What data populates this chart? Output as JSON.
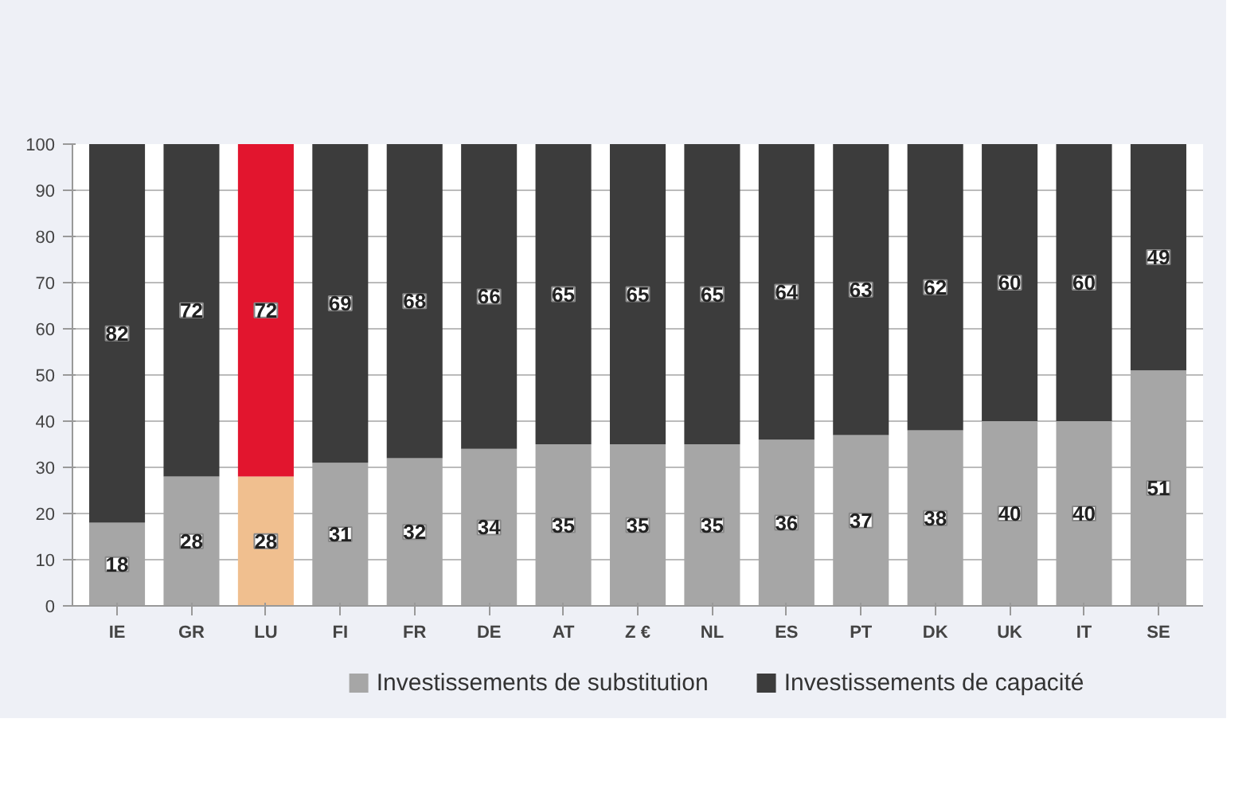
{
  "chart_data": {
    "type": "bar",
    "stacked": true,
    "categories": [
      "IE",
      "GR",
      "LU",
      "FI",
      "FR",
      "DE",
      "AT",
      "Z €",
      "NL",
      "ES",
      "PT",
      "DK",
      "UK",
      "IT",
      "SE"
    ],
    "series": [
      {
        "name": "Investissements de substitution",
        "color": "#a6a6a6",
        "colors": [
          "#a6a6a6",
          "#a6a6a6",
          "#f0bf8f",
          "#a6a6a6",
          "#a6a6a6",
          "#a6a6a6",
          "#a6a6a6",
          "#a6a6a6",
          "#a6a6a6",
          "#a6a6a6",
          "#a6a6a6",
          "#a6a6a6",
          "#a6a6a6",
          "#a6a6a6",
          "#a6a6a6"
        ],
        "values": [
          18,
          28,
          28,
          31,
          32,
          34,
          35,
          35,
          35,
          36,
          37,
          38,
          40,
          40,
          51
        ]
      },
      {
        "name": "Investissements de capacité",
        "color": "#3c3c3c",
        "colors": [
          "#3c3c3c",
          "#3c3c3c",
          "#e2152e",
          "#3c3c3c",
          "#3c3c3c",
          "#3c3c3c",
          "#3c3c3c",
          "#3c3c3c",
          "#3c3c3c",
          "#3c3c3c",
          "#3c3c3c",
          "#3c3c3c",
          "#3c3c3c",
          "#3c3c3c",
          "#3c3c3c"
        ],
        "values": [
          82,
          72,
          72,
          69,
          68,
          66,
          65,
          65,
          65,
          64,
          63,
          62,
          60,
          60,
          49
        ]
      }
    ],
    "ylim": [
      0,
      100
    ],
    "yticks": [
      0,
      10,
      20,
      30,
      40,
      50,
      60,
      70,
      80,
      90,
      100
    ],
    "grid": "y",
    "legend": "bottom",
    "data_labels": true
  }
}
